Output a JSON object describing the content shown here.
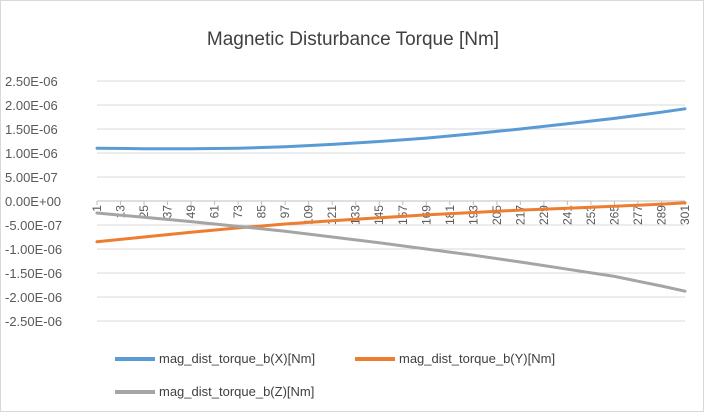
{
  "chart_data": {
    "type": "line",
    "title": "Magnetic Disturbance Torque [Nm]",
    "xlabel": "",
    "ylabel": "",
    "ylim": [
      -2.5e-06,
      2.5e-06
    ],
    "y_ticks": [
      "2.50E-06",
      "2.00E-06",
      "1.50E-06",
      "1.00E-06",
      "5.00E-07",
      "0.00E+00",
      "-5.00E-07",
      "-1.00E-06",
      "-1.50E-06",
      "-2.00E-06",
      "-2.50E-06"
    ],
    "x_tick_labels": [
      "1",
      "13",
      "25",
      "37",
      "49",
      "61",
      "73",
      "85",
      "97",
      "109",
      "121",
      "133",
      "145",
      "157",
      "169",
      "181",
      "193",
      "205",
      "217",
      "229",
      "241",
      "253",
      "265",
      "277",
      "289",
      "301"
    ],
    "x_range": [
      1,
      301
    ],
    "grid": true,
    "legend_position": "bottom",
    "x": [
      1,
      25,
      49,
      73,
      97,
      121,
      145,
      169,
      193,
      217,
      241,
      265,
      289,
      301
    ],
    "series": [
      {
        "name": "mag_dist_torque_b(X)[Nm]",
        "color": "#5b9bd5",
        "values": [
          1.1e-06,
          1.09e-06,
          1.09e-06,
          1.1e-06,
          1.13e-06,
          1.18e-06,
          1.24e-06,
          1.31e-06,
          1.4e-06,
          1.5e-06,
          1.61e-06,
          1.72e-06,
          1.85e-06,
          1.92e-06
        ]
      },
      {
        "name": "mag_dist_torque_b(Y)[Nm]",
        "color": "#ed7d31",
        "values": [
          -8.5e-07,
          -7.5e-07,
          -6.5e-07,
          -5.6e-07,
          -4.8e-07,
          -4.1e-07,
          -3.5e-07,
          -2.9e-07,
          -2.4e-07,
          -1.9e-07,
          -1.5e-07,
          -1.1e-07,
          -6.5e-08,
          -4e-08
        ]
      },
      {
        "name": "mag_dist_torque_b(Z)[Nm]",
        "color": "#a5a5a5",
        "values": [
          -2.5e-07,
          -3.4e-07,
          -4.3e-07,
          -5.3e-07,
          -6.3e-07,
          -7.5e-07,
          -8.7e-07,
          -1e-06,
          -1.13e-06,
          -1.27e-06,
          -1.42e-06,
          -1.57e-06,
          -1.77e-06,
          -1.88e-06
        ]
      }
    ]
  }
}
